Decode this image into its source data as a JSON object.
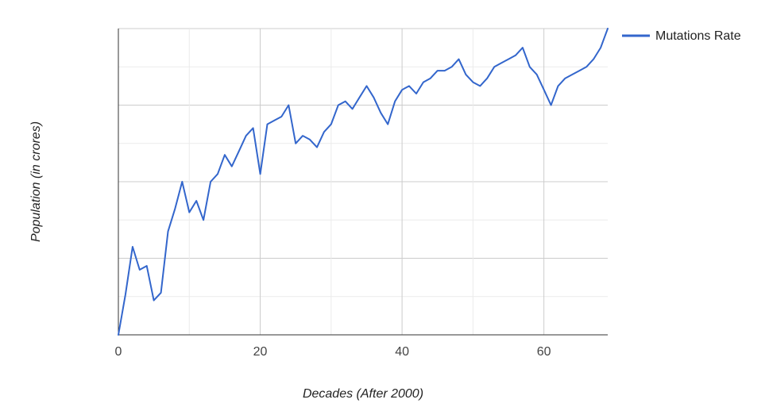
{
  "chart_data": {
    "type": "line",
    "xlabel": "Decades (After 2000)",
    "ylabel": "Population (in crores)",
    "xlim": [
      0,
      69
    ],
    "x_ticks": [
      0,
      20,
      40,
      60
    ],
    "ylim": [
      0,
      8
    ],
    "y_ticks_labeled": false,
    "grid": true,
    "legend_position": "top-right",
    "series": [
      {
        "name": "Mutations Rate",
        "color": "#3366cc",
        "x": [
          0,
          1,
          2,
          3,
          4,
          5,
          6,
          7,
          8,
          9,
          10,
          11,
          12,
          13,
          14,
          15,
          16,
          17,
          18,
          19,
          20,
          21,
          22,
          23,
          24,
          25,
          26,
          27,
          28,
          29,
          30,
          31,
          32,
          33,
          34,
          35,
          36,
          37,
          38,
          39,
          40,
          41,
          42,
          43,
          44,
          45,
          46,
          47,
          48,
          49,
          50,
          51,
          52,
          53,
          54,
          55,
          56,
          57,
          58,
          59,
          60,
          61,
          62,
          63,
          64,
          65,
          66,
          67,
          68,
          69
        ],
        "values": [
          0,
          1.05,
          2.3,
          1.7,
          1.8,
          0.9,
          1.1,
          2.7,
          3.3,
          4,
          3.2,
          3.5,
          3,
          4,
          4.2,
          4.7,
          4.4,
          4.8,
          5.2,
          5.4,
          4.2,
          5.5,
          5.6,
          5.7,
          6,
          5,
          5.2,
          5.1,
          4.9,
          5.3,
          5.5,
          6,
          6.1,
          5.9,
          6.2,
          6.5,
          6.2,
          5.8,
          5.5,
          6.1,
          6.4,
          6.5,
          6.3,
          6.6,
          6.7,
          6.9,
          6.9,
          7,
          7.2,
          6.8,
          6.6,
          6.5,
          6.7,
          7,
          7.1,
          7.2,
          7.3,
          7.5,
          7,
          6.8,
          6.4,
          6,
          6.5,
          6.7,
          6.8,
          6.9,
          7,
          7.2,
          7.5,
          8
        ]
      }
    ]
  }
}
